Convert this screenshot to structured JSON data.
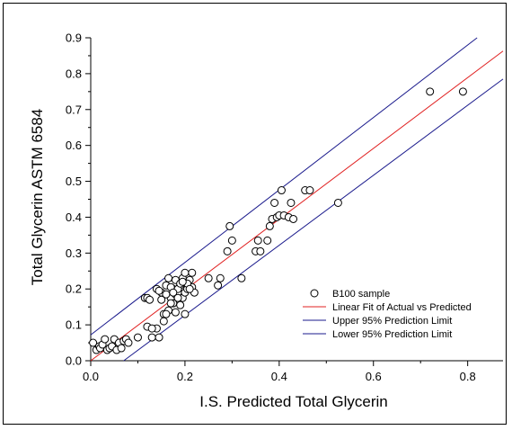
{
  "chart_data": {
    "type": "scatter",
    "xlabel": "I.S. Predicted Total Glycerin",
    "ylabel": "Total Glycerin ASTM 6584",
    "xlim": [
      0,
      0.875
    ],
    "ylim": [
      0,
      0.9
    ],
    "x_ticks": [
      "0.0",
      "0.2",
      "0.4",
      "0.6",
      "0.8"
    ],
    "y_ticks": [
      "0.0",
      "0.1",
      "0.2",
      "0.3",
      "0.4",
      "0.5",
      "0.6",
      "0.7",
      "0.8",
      "0.9"
    ],
    "grid": false,
    "legend_position": "bottom-right",
    "legend": [
      {
        "label": "B100 sample",
        "kind": "marker",
        "color": "#000000"
      },
      {
        "label": "Linear Fit of Actual vs Predicted",
        "kind": "line",
        "color": "#e02020"
      },
      {
        "label": "Upper 95% Prediction Limit",
        "kind": "line",
        "color": "#1a1a8c"
      },
      {
        "label": "Lower 95% Prediction Limit",
        "kind": "line",
        "color": "#1a1a8c"
      }
    ],
    "lines": [
      {
        "label": "Linear Fit of Actual vs Predicted",
        "color": "#e02020",
        "x": [
          0.0,
          0.875
        ],
        "y": [
          0.0,
          0.863
        ]
      },
      {
        "label": "Upper 95% Prediction Limit",
        "color": "#1a1a8c",
        "x": [
          0.0,
          0.82
        ],
        "y": [
          0.072,
          0.9
        ]
      },
      {
        "label": "Lower 95% Prediction Limit",
        "color": "#1a1a8c",
        "x": [
          0.07,
          0.875
        ],
        "y": [
          0.0,
          0.785
        ]
      }
    ],
    "points": {
      "x": [
        0.005,
        0.012,
        0.018,
        0.02,
        0.025,
        0.03,
        0.035,
        0.04,
        0.045,
        0.05,
        0.055,
        0.06,
        0.065,
        0.07,
        0.075,
        0.08,
        0.1,
        0.115,
        0.12,
        0.125,
        0.13,
        0.14,
        0.145,
        0.15,
        0.155,
        0.16,
        0.165,
        0.17,
        0.175,
        0.18,
        0.185,
        0.19,
        0.195,
        0.2,
        0.205,
        0.21,
        0.215,
        0.22,
        0.155,
        0.165,
        0.175,
        0.185,
        0.195,
        0.205,
        0.215,
        0.16,
        0.17,
        0.18,
        0.19,
        0.2,
        0.21,
        0.14,
        0.15,
        0.16,
        0.17,
        0.18,
        0.19,
        0.2,
        0.175,
        0.185,
        0.195,
        0.12,
        0.13,
        0.145,
        0.25,
        0.27,
        0.275,
        0.29,
        0.295,
        0.3,
        0.32,
        0.35,
        0.355,
        0.36,
        0.375,
        0.38,
        0.385,
        0.39,
        0.395,
        0.4,
        0.405,
        0.41,
        0.42,
        0.425,
        0.43,
        0.455,
        0.465,
        0.525,
        0.72,
        0.79
      ],
      "y": [
        0.05,
        0.03,
        0.04,
        0.035,
        0.045,
        0.06,
        0.03,
        0.035,
        0.04,
        0.06,
        0.03,
        0.05,
        0.035,
        0.055,
        0.06,
        0.05,
        0.065,
        0.175,
        0.175,
        0.17,
        0.065,
        0.09,
        0.065,
        0.19,
        0.11,
        0.21,
        0.23,
        0.175,
        0.2,
        0.185,
        0.19,
        0.21,
        0.175,
        0.19,
        0.2,
        0.225,
        0.205,
        0.19,
        0.13,
        0.14,
        0.16,
        0.2,
        0.23,
        0.215,
        0.245,
        0.185,
        0.205,
        0.225,
        0.215,
        0.245,
        0.2,
        0.2,
        0.17,
        0.13,
        0.16,
        0.135,
        0.155,
        0.13,
        0.19,
        0.175,
        0.22,
        0.095,
        0.09,
        0.195,
        0.23,
        0.21,
        0.23,
        0.305,
        0.375,
        0.335,
        0.23,
        0.305,
        0.335,
        0.305,
        0.335,
        0.375,
        0.395,
        0.44,
        0.4,
        0.405,
        0.475,
        0.405,
        0.4,
        0.44,
        0.395,
        0.475,
        0.475,
        0.44,
        0.75,
        0.75
      ]
    }
  }
}
